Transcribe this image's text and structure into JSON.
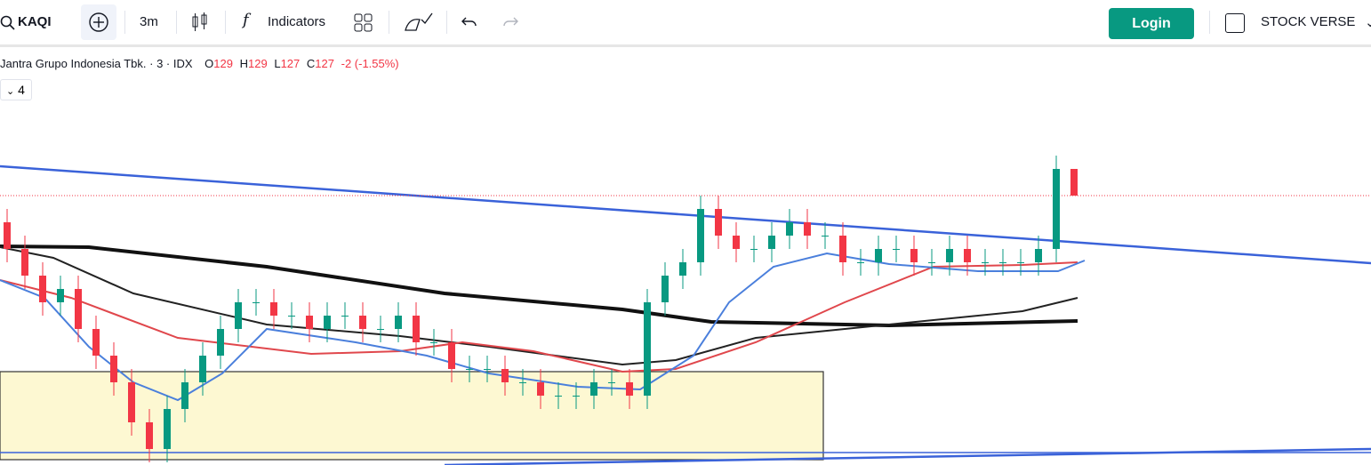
{
  "toolbar": {
    "symbol": "KAQI",
    "interval": "3m",
    "indicators": "Indicators",
    "login": "Login",
    "workspace": "STOCK VERSE"
  },
  "legend": {
    "title": "Jantra Grupo Indonesia Tbk. · 3 · IDX",
    "open_label": "O",
    "high_label": "H",
    "low_label": "L",
    "close_label": "C",
    "change": "-2 (-1.55%)",
    "collapsed_count": "4"
  },
  "chart_data": {
    "type": "candlestick",
    "open": [
      125,
      123,
      121,
      119,
      120,
      117,
      115,
      113,
      110,
      108,
      111,
      113,
      115,
      117,
      119,
      119,
      118,
      118,
      117,
      118,
      118,
      117,
      117,
      118,
      116,
      116,
      114,
      114,
      114,
      113,
      113,
      112,
      112,
      112,
      113,
      113,
      112,
      119,
      121,
      122,
      126,
      124,
      123,
      123,
      124,
      125,
      124,
      124,
      122,
      122,
      123,
      123,
      122,
      122,
      123,
      122,
      122,
      122,
      122,
      123,
      129
    ],
    "high": [
      126,
      124,
      122,
      121,
      121,
      118,
      116,
      114,
      111,
      112,
      114,
      116,
      118,
      120,
      120,
      120,
      119,
      119,
      119,
      119,
      119,
      118,
      119,
      119,
      117,
      117,
      115,
      115,
      115,
      114,
      114,
      113,
      113,
      114,
      114,
      114,
      120,
      122,
      123,
      127,
      127,
      125,
      124,
      125,
      126,
      126,
      125,
      125,
      123,
      124,
      124,
      124,
      123,
      124,
      124,
      123,
      123,
      123,
      124,
      130,
      129
    ],
    "low": [
      122,
      120,
      118,
      118,
      116,
      114,
      112,
      109,
      107,
      107,
      110,
      112,
      114,
      116,
      118,
      117,
      117,
      116,
      116,
      117,
      116,
      116,
      116,
      115,
      115,
      113,
      113,
      113,
      112,
      112,
      111,
      111,
      111,
      111,
      112,
      111,
      111,
      118,
      120,
      121,
      123,
      122,
      122,
      122,
      123,
      123,
      123,
      121,
      121,
      121,
      122,
      121,
      121,
      121,
      121,
      121,
      121,
      121,
      121,
      122,
      127
    ],
    "close": [
      123,
      121,
      119,
      120,
      117,
      115,
      113,
      110,
      108,
      111,
      113,
      115,
      117,
      119,
      119,
      118,
      118,
      117,
      118,
      118,
      117,
      117,
      118,
      116,
      116,
      114,
      114,
      114,
      113,
      113,
      112,
      112,
      112,
      113,
      113,
      112,
      119,
      121,
      122,
      126,
      124,
      123,
      123,
      124,
      125,
      124,
      124,
      122,
      122,
      123,
      123,
      122,
      122,
      123,
      122,
      122,
      122,
      122,
      123,
      129,
      127
    ],
    "up_color": "#089981",
    "down_color": "#f23645",
    "ylim": [
      107,
      135
    ]
  }
}
